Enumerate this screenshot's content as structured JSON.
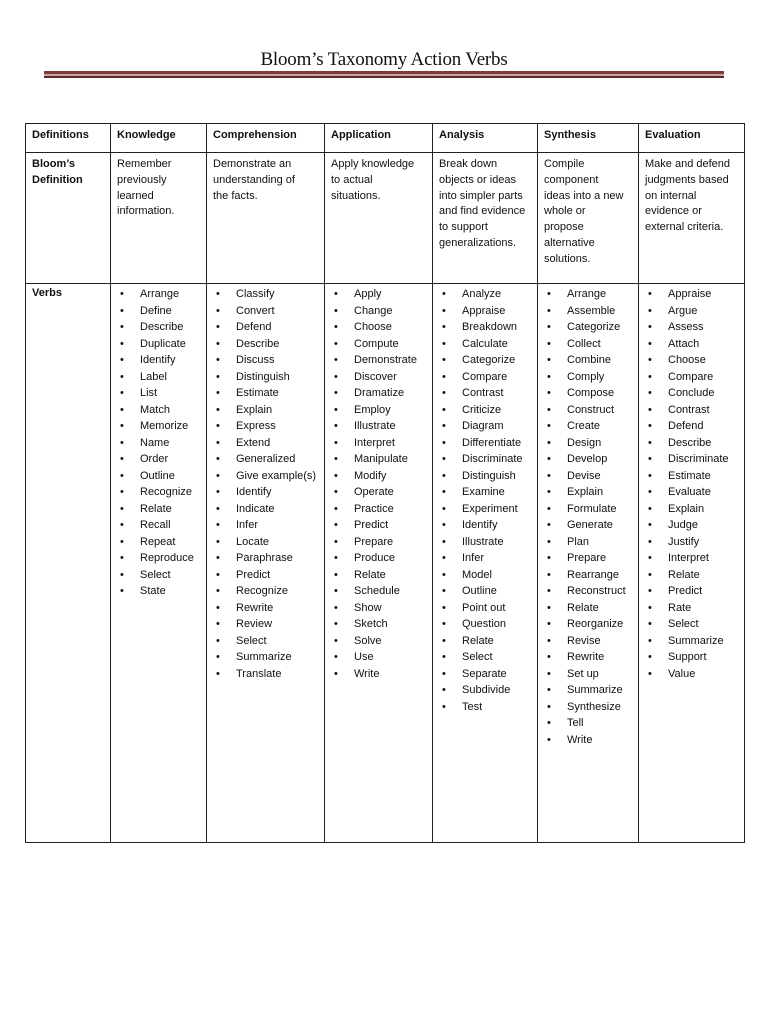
{
  "title": "Bloom’s Taxonomy Action Verbs",
  "accent_color": "#7a3b3b",
  "table": {
    "headers": [
      "Definitions",
      "Knowledge",
      "Comprehension",
      "Application",
      "Analysis",
      "Synthesis",
      "Evaluation"
    ],
    "definition_label": "Bloom’s\nDefinition",
    "definitions": [
      "Remember\npreviously\nlearned\ninformation.",
      "Demonstrate an\nunderstanding of\nthe facts.",
      "Apply knowledge\nto actual\nsituations.",
      "Break down\nobjects or ideas\ninto simpler parts\nand find evidence\nto support\ngeneralizations.",
      "Compile\ncomponent\nideas into a new\nwhole or\npropose\nalternative\nsolutions.",
      "Make and defend\njudgments based\non internal\nevidence or\nexternal criteria."
    ],
    "verbs_label": "Verbs",
    "verbs": [
      [
        "Arrange",
        "Define",
        "Describe",
        "Duplicate",
        "Identify",
        "Label",
        "List",
        "Match",
        "Memorize",
        "Name",
        "Order",
        "Outline",
        "Recognize",
        "Relate",
        "Recall",
        "Repeat",
        "Reproduce",
        "Select",
        "State"
      ],
      [
        "Classify",
        "Convert",
        "Defend",
        "Describe",
        "Discuss",
        "Distinguish",
        "Estimate",
        "Explain",
        "Express",
        "Extend",
        "Generalized",
        "Give example(s)",
        "Identify",
        "Indicate",
        "Infer",
        "Locate",
        "Paraphrase",
        "Predict",
        "Recognize",
        "Rewrite",
        "Review",
        "Select",
        "Summarize",
        "Translate"
      ],
      [
        "Apply",
        "Change",
        "Choose",
        "Compute",
        "Demonstrate",
        "Discover",
        "Dramatize",
        "Employ",
        "Illustrate",
        "Interpret",
        "Manipulate",
        "Modify",
        "Operate",
        "Practice",
        "Predict",
        "Prepare",
        "Produce",
        "Relate",
        "Schedule",
        "Show",
        "Sketch",
        "Solve",
        "Use",
        "Write"
      ],
      [
        "Analyze",
        "Appraise",
        "Breakdown",
        "Calculate",
        "Categorize",
        "Compare",
        "Contrast",
        "Criticize",
        "Diagram",
        "Differentiate",
        "Discriminate",
        "Distinguish",
        "Examine",
        "Experiment",
        "Identify",
        "Illustrate",
        "Infer",
        "Model",
        "Outline",
        "Point out",
        "Question",
        "Relate",
        "Select",
        "Separate",
        "Subdivide",
        "Test"
      ],
      [
        "Arrange",
        "Assemble",
        "Categorize",
        "Collect",
        "Combine",
        "Comply",
        "Compose",
        "Construct",
        "Create",
        "Design",
        "Develop",
        "Devise",
        "Explain",
        "Formulate",
        "Generate",
        "Plan",
        "Prepare",
        "Rearrange",
        "Reconstruct",
        "Relate",
        "Reorganize",
        "Revise",
        "Rewrite",
        "Set up",
        "Summarize",
        "Synthesize",
        "Tell",
        "Write"
      ],
      [
        "Appraise",
        "Argue",
        "Assess",
        "Attach",
        "Choose",
        "Compare",
        "Conclude",
        "Contrast",
        "Defend",
        "Describe",
        "Discriminate",
        "Estimate",
        "Evaluate",
        "Explain",
        "Judge",
        "Justify",
        "Interpret",
        "Relate",
        "Predict",
        "Rate",
        "Select",
        "Summarize",
        "Support",
        "Value"
      ]
    ]
  }
}
